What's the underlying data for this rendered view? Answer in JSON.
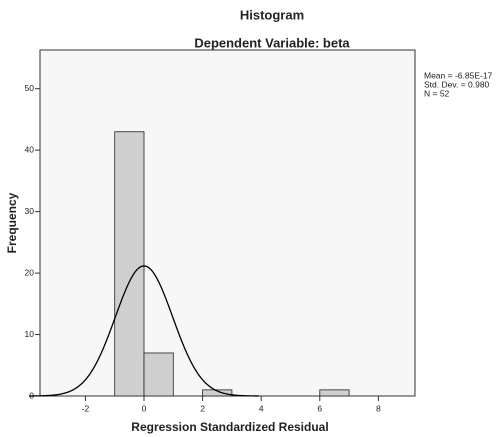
{
  "chart_data": {
    "type": "histogram",
    "title": "Histogram",
    "subtitle": "Dependent Variable: beta",
    "x_label": "Regression Standardized Residual",
    "y_label": "Frequency",
    "bins": [
      -1,
      0,
      1,
      2,
      3,
      4,
      5,
      6,
      7
    ],
    "values": [
      43,
      7,
      0,
      1,
      0,
      0,
      0,
      1
    ],
    "color": "#cfcfcf",
    "xlim": [
      -3.55,
      9.25
    ],
    "xticks": [
      -2,
      0,
      2,
      4,
      6,
      8
    ],
    "ylim": [
      0,
      56.3
    ],
    "yticks": [
      0,
      10,
      20,
      30,
      40,
      50
    ],
    "stats": [
      {
        "value": -6.85e-17,
        "label": "Mean = -6.85E-17"
      },
      {
        "value": 0.98,
        "label": "Std. Dev. = 0.980"
      },
      {
        "value": 52,
        "label": "N = 52"
      }
    ]
  }
}
